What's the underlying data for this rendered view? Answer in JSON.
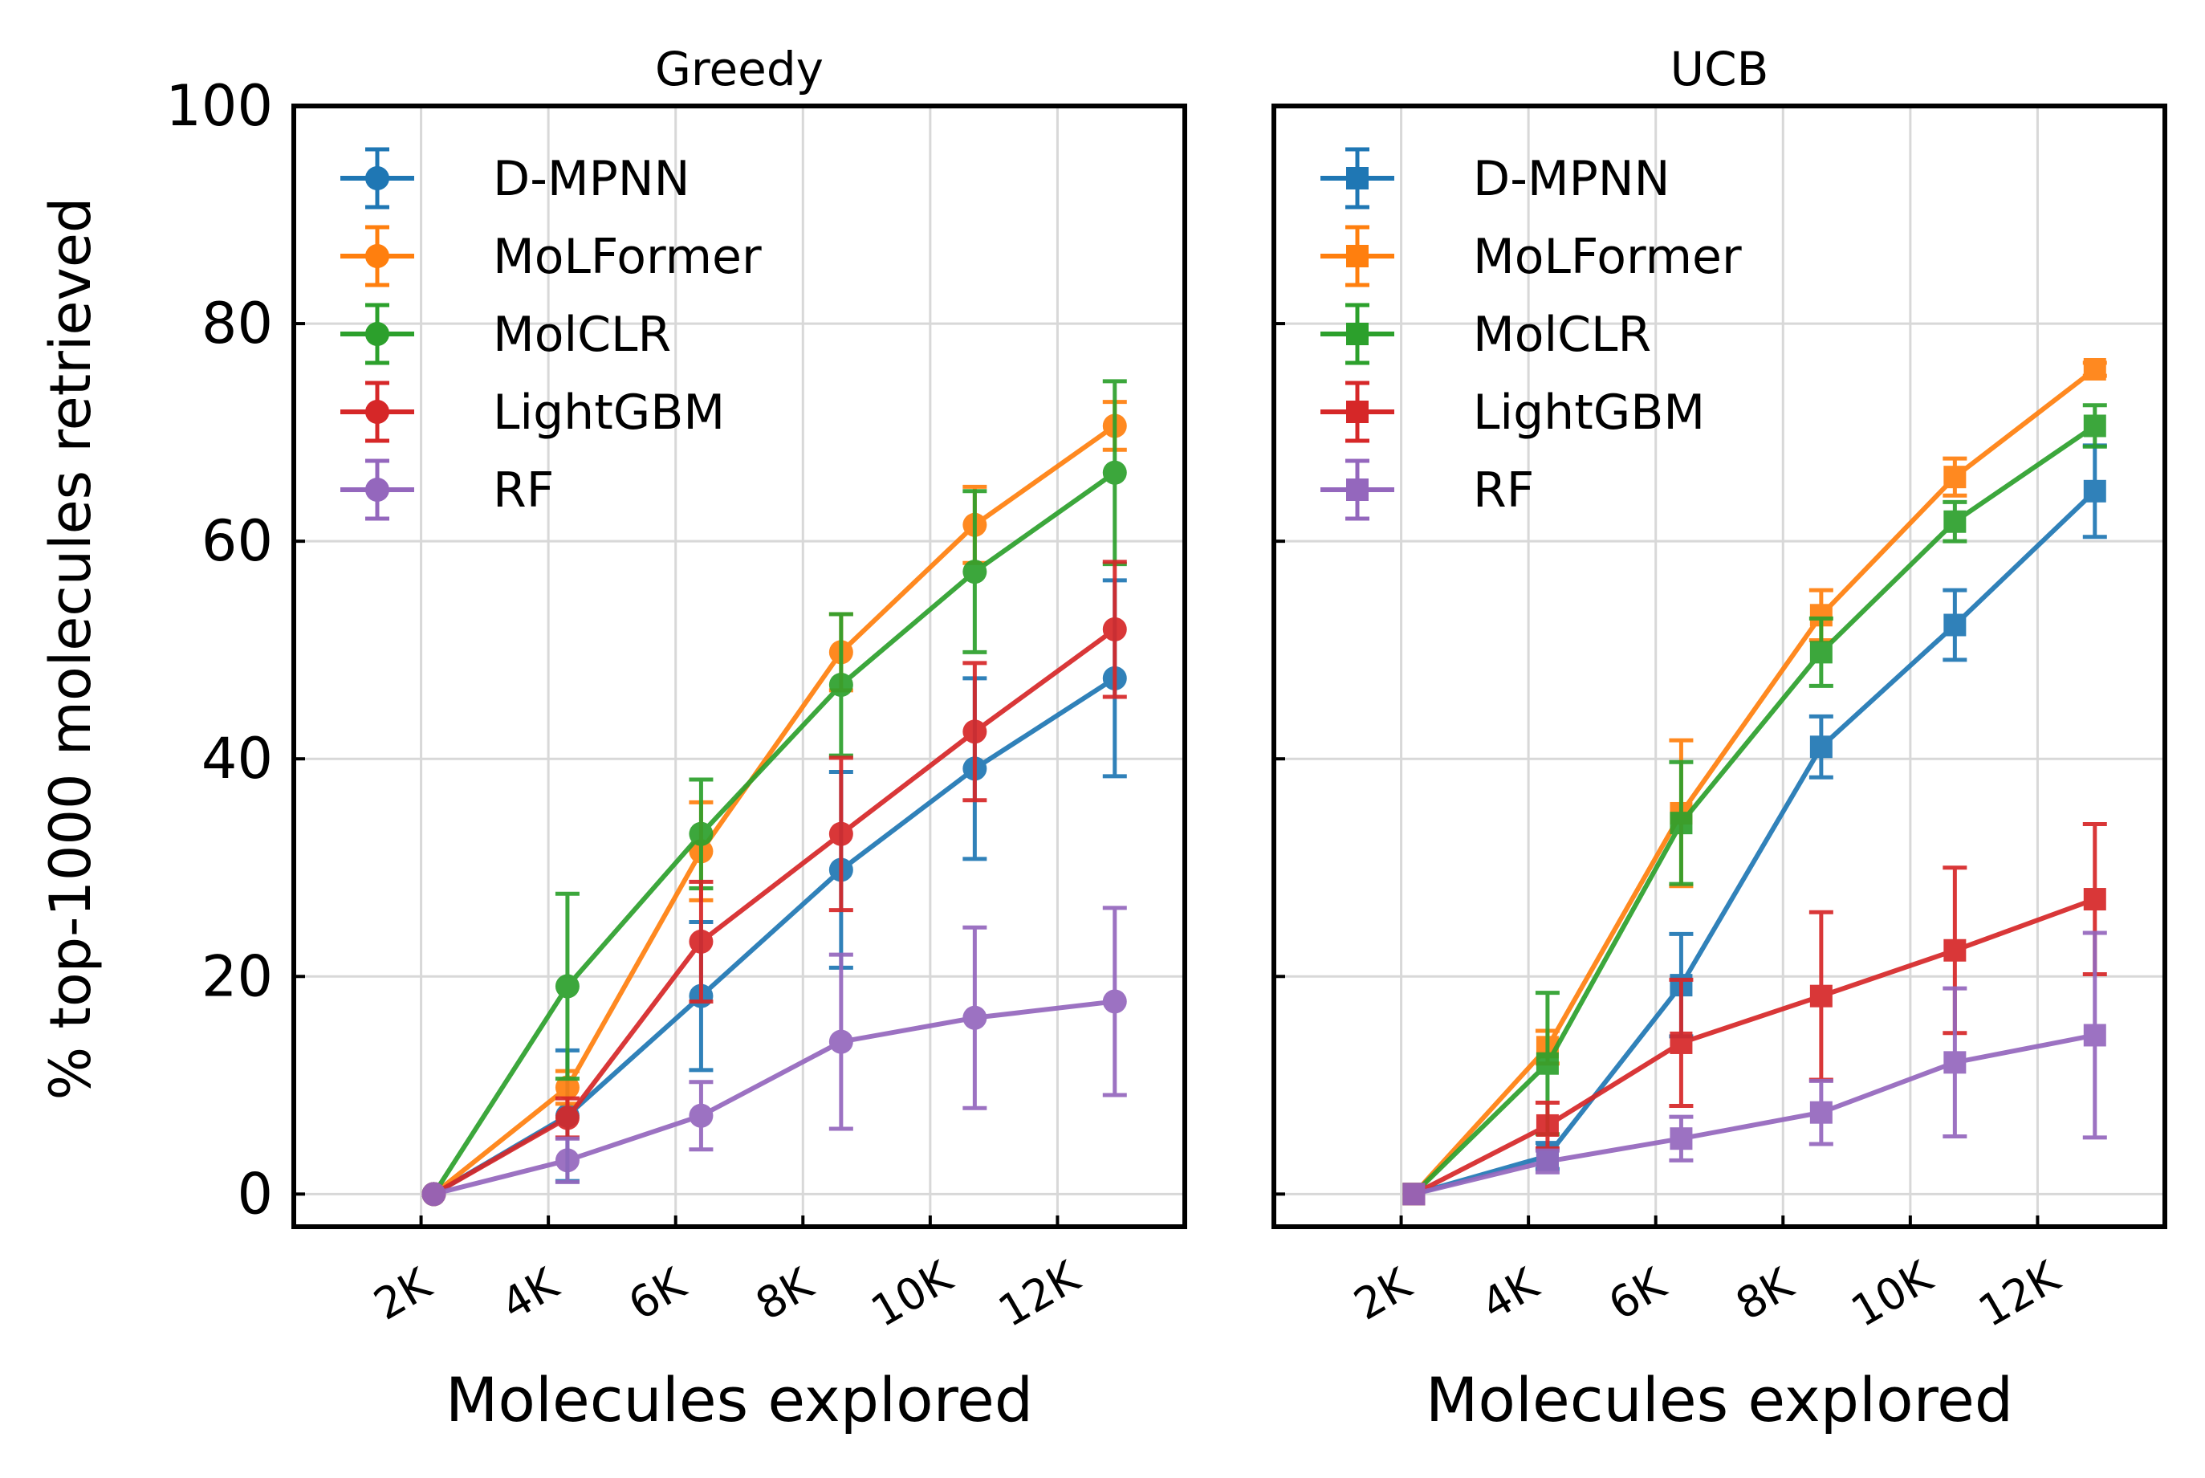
{
  "ylabel": "% top-1000 molecules retrieved",
  "series_colors": {
    "D-MPNN": "#1f77b4",
    "MoLFormer": "#ff7f0e",
    "MolCLR": "#2ca02c",
    "LightGBM": "#d62728",
    "RF": "#9467bd"
  },
  "chart_data": [
    {
      "type": "line",
      "title": "Greedy",
      "xlabel": "Molecules explored",
      "ylabel": "% top-1000 molecules retrieved",
      "marker": "circle",
      "xlim": [
        0,
        14000
      ],
      "ylim": [
        -3,
        100
      ],
      "xticks": [
        2000,
        4000,
        6000,
        8000,
        10000,
        12000
      ],
      "xtick_labels": [
        "2K",
        "4K",
        "6K",
        "8K",
        "10K",
        "12K"
      ],
      "yticks": [
        0,
        20,
        40,
        60,
        80,
        100
      ],
      "ytick_labels": [
        "0",
        "20",
        "40",
        "60",
        "80",
        "100"
      ],
      "grid": true,
      "legend_position": "top-left",
      "x": [
        2200,
        4300,
        6400,
        8600,
        10700,
        12900
      ],
      "series": [
        {
          "name": "D-MPNN",
          "values": [
            0,
            7.2,
            18.2,
            29.8,
            39.1,
            47.4
          ],
          "errors": [
            0,
            6,
            6.8,
            9,
            8.3,
            9
          ]
        },
        {
          "name": "MoLFormer",
          "values": [
            0,
            9.8,
            31.5,
            49.8,
            61.5,
            70.6
          ],
          "errors": [
            0,
            1.5,
            4.5,
            3.5,
            3.5,
            2.2
          ]
        },
        {
          "name": "MolCLR",
          "values": [
            0,
            19.1,
            33.1,
            46.8,
            57.2,
            66.3
          ],
          "errors": [
            0,
            8.5,
            5,
            6.5,
            7.4,
            8.4
          ]
        },
        {
          "name": "LightGBM",
          "values": [
            0,
            7,
            23.2,
            33.1,
            42.5,
            51.9
          ],
          "errors": [
            0,
            1.8,
            5.5,
            7,
            6.3,
            6.2
          ]
        },
        {
          "name": "RF",
          "values": [
            0,
            3.1,
            7.2,
            14,
            16.2,
            17.7
          ],
          "errors": [
            0,
            2,
            3.1,
            8,
            8.3,
            8.6
          ]
        }
      ]
    },
    {
      "type": "line",
      "title": "UCB",
      "xlabel": "Molecules explored",
      "ylabel": "",
      "marker": "square",
      "xlim": [
        0,
        14000
      ],
      "ylim": [
        -3,
        100
      ],
      "xticks": [
        2000,
        4000,
        6000,
        8000,
        10000,
        12000
      ],
      "xtick_labels": [
        "2K",
        "4K",
        "6K",
        "8K",
        "10K",
        "12K"
      ],
      "yticks": [
        0,
        20,
        40,
        60,
        80,
        100
      ],
      "ytick_labels": [
        "",
        "",
        "",
        "",
        "",
        ""
      ],
      "grid": true,
      "legend_position": "top-left",
      "x": [
        2200,
        4300,
        6400,
        8600,
        10700,
        12900
      ],
      "series": [
        {
          "name": "D-MPNN",
          "values": [
            0,
            3.5,
            19.2,
            41.1,
            52.3,
            64.6
          ],
          "errors": [
            0,
            1.2,
            4.7,
            2.8,
            3.2,
            4.2
          ]
        },
        {
          "name": "MoLFormer",
          "values": [
            0,
            13.5,
            35,
            53.2,
            65.9,
            75.8
          ],
          "errors": [
            0,
            1.5,
            6.7,
            2.3,
            1.7,
            0.6
          ]
        },
        {
          "name": "MolCLR",
          "values": [
            0,
            12,
            34.1,
            49.8,
            61.8,
            70.6
          ],
          "errors": [
            0,
            6.5,
            5.6,
            3.1,
            1.8,
            1.9
          ]
        },
        {
          "name": "LightGBM",
          "values": [
            0,
            6.3,
            13.9,
            18.2,
            22.4,
            27.1
          ],
          "errors": [
            0,
            2.1,
            5.8,
            7.7,
            7.6,
            6.9
          ]
        },
        {
          "name": "RF",
          "values": [
            0,
            3,
            5.1,
            7.5,
            12.1,
            14.6
          ],
          "errors": [
            0,
            1,
            2,
            2.9,
            6.8,
            9.4
          ]
        }
      ]
    }
  ]
}
